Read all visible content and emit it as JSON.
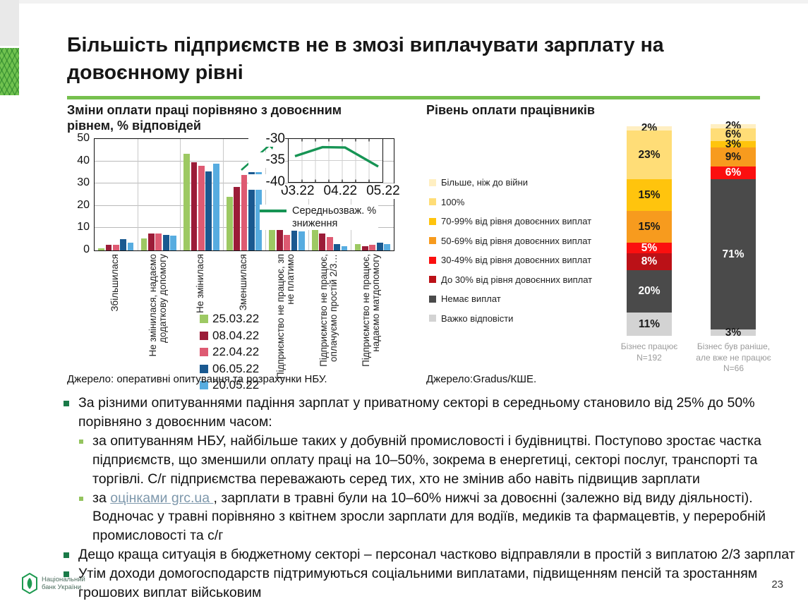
{
  "slide": {
    "title": "Більшість підприємств не в змозі виплачувати зарплату на довоєнному рівні",
    "page_number": "23",
    "logo_line1": "Національний",
    "logo_line2": "банк України",
    "accent_green": "#76c04e"
  },
  "chart_data": [
    {
      "type": "bar",
      "title": "Зміни оплати праці порівняно з довоєнним рівнем, % відповідей",
      "source": "Джерело: оперативні опитування та розрахунки НБУ.",
      "ylim": [
        0,
        50
      ],
      "yticks": [
        0,
        10,
        20,
        30,
        40,
        50
      ],
      "grid": true,
      "categories": [
        "Збільшилася",
        "Не змінилася, надаємо додаткову допомогу",
        "Не змінилася",
        "Зменшилася",
        "Підприємство не працює, зп не платимо",
        "Підприємство не працює, оплачуємо простій 2/3…",
        "Підприємство не працює, надаємо матдопомогу"
      ],
      "series": [
        {
          "name": "25.03.22",
          "color": "#9dc963",
          "values": [
            1,
            5.5,
            43.5,
            24,
            10.5,
            10.5,
            3
          ]
        },
        {
          "name": "08.04.22",
          "color": "#9b1c38",
          "values": [
            2.5,
            7.5,
            39.5,
            28.5,
            10,
            7.5,
            2
          ]
        },
        {
          "name": "22.04.22",
          "color": "#de5a72",
          "values": [
            2.5,
            7.5,
            38,
            34,
            7,
            6,
            2.5
          ]
        },
        {
          "name": "06.05.22",
          "color": "#1a5990",
          "values": [
            5,
            7,
            35.5,
            35,
            9,
            3,
            3.5
          ]
        },
        {
          "name": "20.05.22",
          "color": "#57ace0",
          "values": [
            3.5,
            6.5,
            39,
            35,
            8.5,
            2,
            3
          ]
        }
      ]
    },
    {
      "type": "line",
      "legend": "Середньозваж. % зниження",
      "color": "#169454",
      "x": [
        "03.22",
        "04.22",
        "05.22"
      ],
      "values": [
        -34,
        -31.9,
        -36.4
      ],
      "ylim": [
        -40,
        -30
      ],
      "yticks": [
        -30,
        -35,
        -40
      ],
      "legend_position": "below"
    },
    {
      "type": "stacked-bar",
      "title": "Рівень оплати працівників",
      "source": "Джерело:Gradus/КШЕ.",
      "categories": [
        [
          "Бізнес працює",
          "N=192"
        ],
        [
          "Бізнес був раніше,",
          "але вже не працює",
          "N=66"
        ]
      ],
      "segments": [
        {
          "label": "Більше, ніж до війни",
          "color": "#ffefc2",
          "text_color": "#1a1a1a",
          "values": [
            2,
            2
          ]
        },
        {
          "label": "100%",
          "color": "#ffdd77",
          "text_color": "#1a1a1a",
          "values": [
            23,
            6
          ]
        },
        {
          "label": "70-99% від рівня довоєнних виплат",
          "color": "#ffc40d",
          "text_color": "#1a1a1a",
          "values": [
            15,
            3
          ]
        },
        {
          "label": "50-69% від рівня довоєнних виплат",
          "color": "#f79b1e",
          "text_color": "#1a1a1a",
          "values": [
            15,
            9
          ]
        },
        {
          "label": "30-49% від рівня довоєнних виплат",
          "color": "#fb0f0f",
          "text_color": "#ffffff",
          "values": [
            5,
            6
          ]
        },
        {
          "label": "До 30% від рівня довоєнних виплат",
          "color": "#bb1117",
          "text_color": "#ffffff",
          "values": [
            8,
            0
          ]
        },
        {
          "label": "Немає виплат",
          "color": "#4a4a4a",
          "text_color": "#ffffff",
          "values": [
            20,
            71
          ]
        },
        {
          "label": "Важко відповісти",
          "color": "#d3d3d3",
          "text_color": "#1a1a1a",
          "values": [
            11,
            3
          ]
        }
      ]
    }
  ],
  "bullets": {
    "items": [
      {
        "level": 1,
        "text": "За різними опитуваннями падіння зарплат у приватному секторі в середньому становило від 25% до 50% порівняно з довоєнним часом:"
      },
      {
        "level": 2,
        "text": "за опитуванням НБУ, найбільше таких у добувній промисловості і будівництві. Поступово зростає частка підприємств, що зменшили оплату праці на 10–50%, зокрема в енергетиці, секторі послуг, транспорті та торгівлі. С/г підприємства переважають серед тих, хто не змінив або навіть підвищив зарплати"
      },
      {
        "level": 2,
        "text_before": "за ",
        "link": "оцінками grc.ua ",
        "text_after": ", зарплати в травні були на 10–60% нижчі за довоєнні (залежно від виду діяльності). Водночас у травні порівняно з квітнем зросли зарплати для водіїв, медиків та фармацевтів, у переробній промисловості та с/г"
      },
      {
        "level": 1,
        "text": "Дещо краща ситуація в бюджетному секторі – персонал частково відправляли в простій з виплатою 2/3 зарплат"
      },
      {
        "level": 1,
        "text": "Утім доходи домогосподарств підтримуються соціальними виплатами, підвищенням пенсій та зростанням грошових виплат військовим"
      }
    ]
  }
}
